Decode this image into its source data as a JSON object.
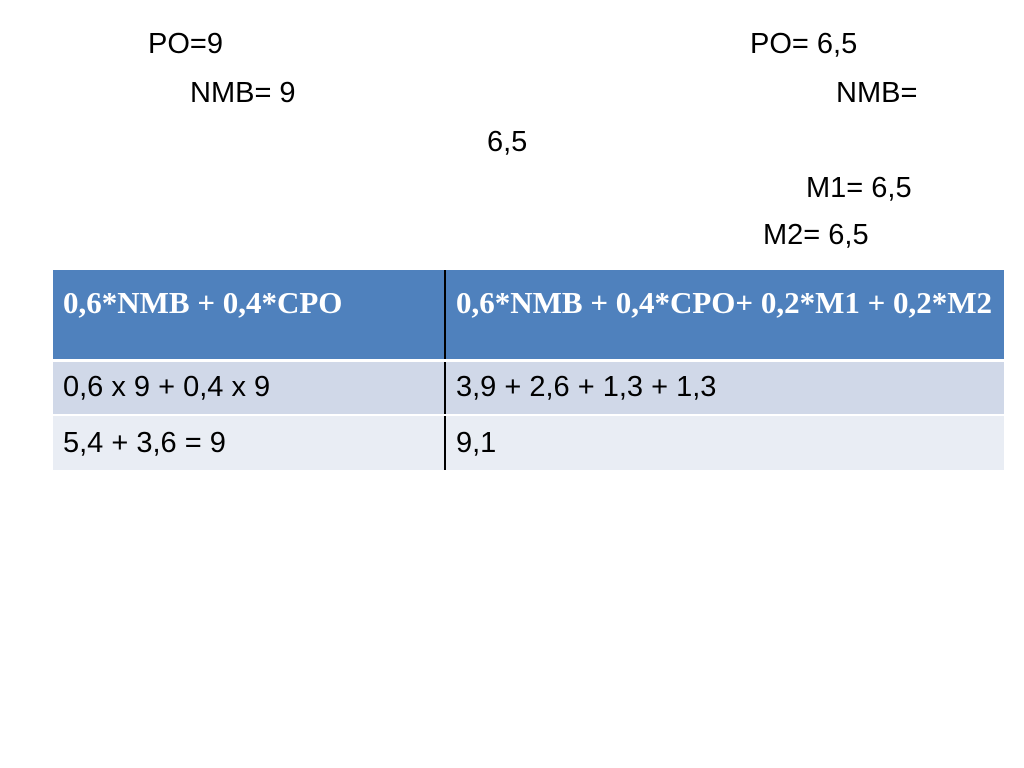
{
  "left_block": {
    "po": "PO=9",
    "nmb": "NMB= 9"
  },
  "right_block": {
    "po": "PO= 6,5",
    "nmb": "NMB=",
    "nmb_continued": "6,5",
    "m1": "M1= 6,5",
    "m2": "M2= 6,5"
  },
  "table": {
    "headers": [
      "0,6*NMB + 0,4*CPO",
      "0,6*NMB + 0,4*CPO+ 0,2*M1 + 0,2*M2"
    ],
    "rows": [
      [
        "0,6 x 9 + 0,4 x 9",
        "3,9 + 2,6 + 1,3 + 1,3"
      ],
      [
        "5,4 + 3,6 = 9",
        "9,1"
      ]
    ]
  },
  "colors": {
    "header_bg": "#4f81bd",
    "row_a_bg": "#d0d8e8",
    "row_b_bg": "#e9edf4"
  }
}
